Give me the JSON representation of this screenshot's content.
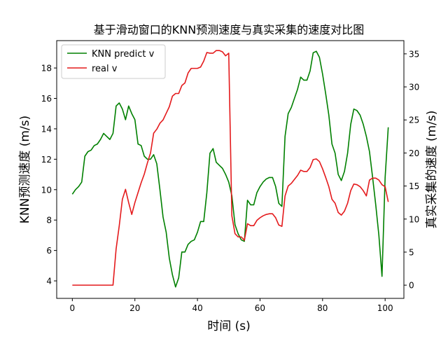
{
  "chart_data": {
    "type": "line",
    "title": "基于滑动窗口的KNN预测速度与真实采集的速度对比图",
    "xlabel": "时间 (s)",
    "ylabel_left": "KNN预测速度 (m/s)",
    "ylabel_right": "真实采集的速度 (m/s)",
    "xlim": [
      -5,
      106
    ],
    "ylim_left": [
      2.85,
      19.8
    ],
    "ylim_right": [
      -2.0,
      37.0
    ],
    "xticks": [
      0,
      20,
      40,
      60,
      80,
      100
    ],
    "yticks_left": [
      4,
      6,
      8,
      10,
      12,
      14,
      16,
      18
    ],
    "yticks_right": [
      0,
      5,
      10,
      15,
      20,
      25,
      30,
      35
    ],
    "grid": false,
    "legend_position": "upper-left",
    "legend": [
      {
        "label": "KNN predict v",
        "color": "#008000"
      },
      {
        "label": "real v",
        "color": "#e41a1c"
      }
    ],
    "series": [
      {
        "name": "KNN predict v",
        "axis": "left",
        "color": "#008000",
        "x": [
          0,
          1,
          2,
          3,
          4,
          5,
          6,
          7,
          8,
          9,
          10,
          11,
          12,
          13,
          14,
          15,
          16,
          17,
          18,
          19,
          20,
          21,
          22,
          23,
          24,
          25,
          26,
          27,
          28,
          29,
          30,
          31,
          32,
          33,
          34,
          35,
          36,
          37,
          38,
          39,
          40,
          41,
          42,
          43,
          44,
          45,
          46,
          47,
          48,
          49,
          50,
          51,
          52,
          53,
          54,
          55,
          56,
          57,
          58,
          59,
          60,
          61,
          62,
          63,
          64,
          65,
          66,
          67,
          68,
          69,
          70,
          71,
          72,
          73,
          74,
          75,
          76,
          77,
          78,
          79,
          80,
          81,
          82,
          83,
          84,
          85,
          86,
          87,
          88,
          89,
          90,
          91,
          92,
          93,
          94,
          95,
          96,
          97,
          98,
          99,
          100,
          101
        ],
        "y": [
          9.7,
          10.0,
          10.2,
          10.5,
          12.2,
          12.5,
          12.6,
          12.9,
          13.0,
          13.3,
          13.7,
          13.5,
          13.3,
          13.7,
          15.5,
          15.7,
          15.3,
          14.6,
          15.5,
          15.0,
          14.6,
          13.0,
          12.9,
          12.2,
          12.0,
          12.0,
          12.3,
          11.7,
          10.0,
          8.2,
          7.2,
          5.5,
          4.4,
          3.6,
          4.2,
          5.9,
          5.9,
          6.4,
          6.6,
          6.7,
          7.2,
          7.9,
          7.9,
          9.8,
          12.4,
          12.7,
          11.8,
          11.6,
          11.4,
          11.0,
          10.5,
          9.6,
          7.7,
          7.1,
          6.7,
          6.6,
          9.3,
          9.0,
          9.0,
          9.8,
          10.2,
          10.5,
          10.7,
          10.8,
          10.8,
          10.2,
          9.1,
          8.9,
          13.5,
          15.0,
          15.4,
          16.0,
          16.6,
          17.4,
          17.2,
          17.2,
          17.8,
          19.0,
          19.1,
          18.7,
          17.6,
          16.3,
          14.9,
          13.0,
          12.4,
          11.0,
          10.6,
          11.2,
          12.4,
          14.3,
          15.3,
          15.2,
          14.9,
          14.3,
          13.5,
          12.5,
          10.8,
          9.0,
          7.0,
          4.3,
          10.8,
          14.1
        ]
      },
      {
        "name": "real v",
        "axis": "right",
        "color": "#e41a1c",
        "x": [
          0,
          1,
          2,
          3,
          4,
          5,
          6,
          7,
          8,
          9,
          10,
          11,
          12,
          13,
          14,
          15,
          16,
          17,
          18,
          19,
          20,
          21,
          22,
          23,
          24,
          25,
          26,
          27,
          28,
          29,
          30,
          31,
          32,
          33,
          34,
          35,
          36,
          37,
          38,
          39,
          40,
          41,
          42,
          43,
          44,
          45,
          46,
          47,
          48,
          49,
          50,
          51,
          52,
          53,
          54,
          55,
          56,
          57,
          58,
          59,
          60,
          61,
          62,
          63,
          64,
          65,
          66,
          67,
          68,
          69,
          70,
          71,
          72,
          73,
          74,
          75,
          76,
          77,
          78,
          79,
          80,
          81,
          82,
          83,
          84,
          85,
          86,
          87,
          88,
          89,
          90,
          91,
          92,
          93,
          94,
          95,
          96,
          97,
          98,
          99,
          100,
          101
        ],
        "y": [
          0,
          0,
          0,
          0,
          0,
          0,
          0,
          0,
          0,
          0,
          0,
          0,
          0,
          0,
          5.5,
          9,
          13,
          14.5,
          12.5,
          10.7,
          12.5,
          14,
          15.5,
          16.8,
          18.5,
          20,
          23,
          23.6,
          24.5,
          25,
          26,
          27,
          28.6,
          29,
          29,
          30.2,
          30.6,
          32.1,
          32.8,
          32.8,
          32.8,
          33,
          33.9,
          35.2,
          35.1,
          35.1,
          35.5,
          35.5,
          35.3,
          34.7,
          35.1,
          10.5,
          7.8,
          7.3,
          7.3,
          6.8,
          9.3,
          9,
          9,
          9.8,
          10.2,
          10.5,
          10.7,
          10.8,
          10.8,
          10.2,
          9.1,
          8.9,
          13.5,
          15,
          15.4,
          16,
          16.6,
          17.4,
          17.2,
          17.2,
          17.8,
          19,
          19.1,
          18.7,
          17.6,
          16.3,
          14.9,
          13,
          12.4,
          11,
          10.6,
          11.2,
          12.4,
          14.3,
          15.3,
          15.2,
          14.9,
          14.3,
          13.5,
          15.9,
          16.2,
          16.2,
          15.9,
          15.2,
          14.9,
          12.6
        ]
      }
    ]
  }
}
